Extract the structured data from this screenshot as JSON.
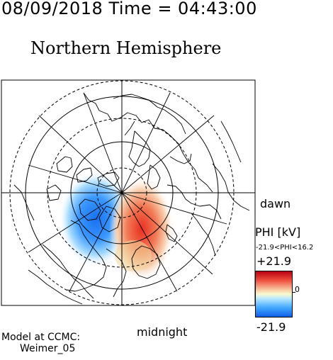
{
  "header": {
    "timestamp": "08/09/2018 Time = 04:43:00",
    "title": "Northern Hemisphere"
  },
  "map": {
    "dawn_label": "dawn",
    "midnight_label": "midnight",
    "cell_positive_color": "#e84030",
    "cell_negative_color": "#1878f0"
  },
  "colorbar": {
    "quantity_label": "PHI [kV]",
    "range_text": "-21.9<PHI<16.2",
    "max_label": "+21.9",
    "zero_label": "0",
    "min_label": "-21.9",
    "max_color": "#b80010",
    "min_color": "#1060e8"
  },
  "credit": {
    "line1": "Model at CCMC:",
    "line2": "Weimer_05"
  }
}
